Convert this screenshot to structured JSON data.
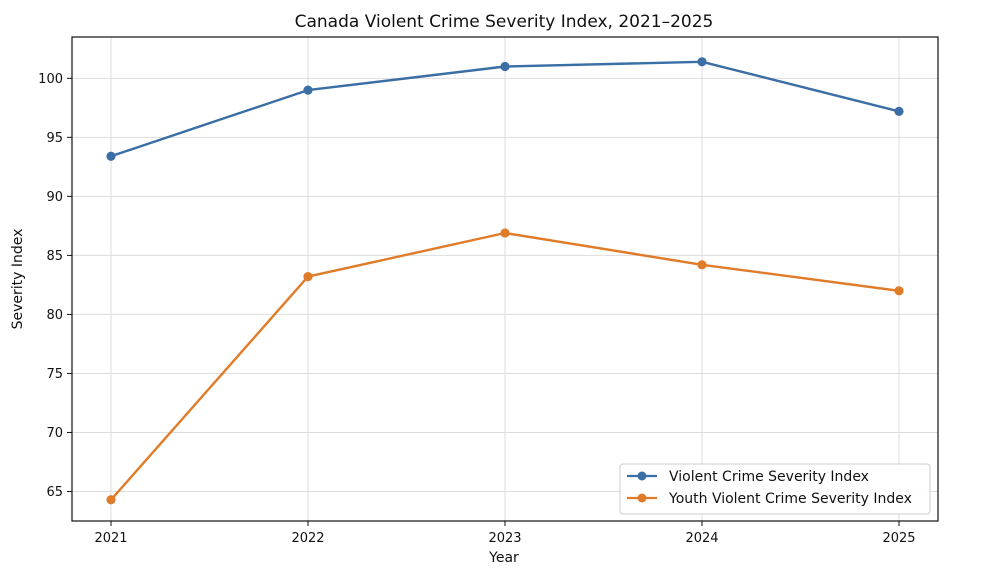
{
  "chart_data": {
    "type": "line",
    "title": "Canada Violent Crime Severity Index, 2021–2025",
    "xlabel": "Year",
    "ylabel": "Severity Index",
    "categories": [
      "2021",
      "2022",
      "2023",
      "2024",
      "2025"
    ],
    "ylim": [
      62.5,
      103.5
    ],
    "yticks": [
      65,
      70,
      75,
      80,
      85,
      90,
      95,
      100
    ],
    "yticks_labels": [
      "65",
      "70",
      "75",
      "80",
      "85",
      "90",
      "95",
      "100"
    ],
    "grid": true,
    "legend_position": "lower-right",
    "series": [
      {
        "name": "Violent Crime Severity Index",
        "color": "#3a6ea5",
        "values": [
          93.4,
          99.0,
          101.0,
          101.4,
          97.2
        ]
      },
      {
        "name": "Youth Violent Crime Severity Index",
        "color": "#e07b28",
        "values": [
          64.3,
          83.2,
          86.9,
          84.2,
          82.0
        ]
      }
    ]
  }
}
